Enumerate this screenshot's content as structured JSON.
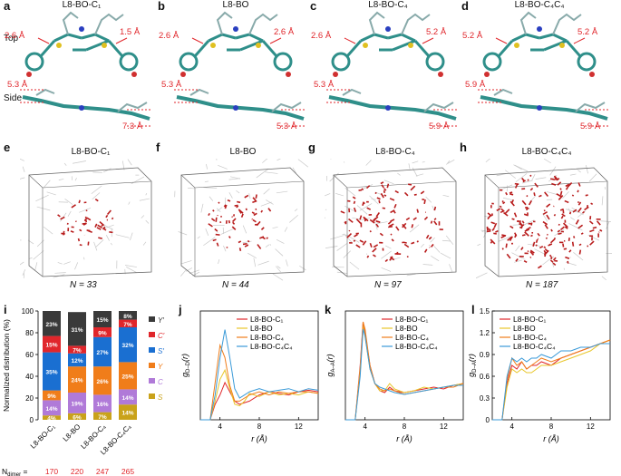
{
  "panels_top": [
    {
      "letter": "a",
      "title": "L8-BO-C₁",
      "ann_left": "2.6 Å",
      "ann_right": "1.5 Å",
      "side_left": "5.3 Å",
      "side_right": "7.3 Å"
    },
    {
      "letter": "b",
      "title": "L8-BO",
      "ann_left": "2.6 Å",
      "ann_right": "2.6 Å",
      "side_left": "5.3 Å",
      "side_right": "5.3 Å"
    },
    {
      "letter": "c",
      "title": "L8-BO-C₄",
      "ann_left": "2.6 Å",
      "ann_right": "5.2 Å",
      "side_left": "5.3 Å",
      "side_right": "5.9 Å"
    },
    {
      "letter": "d",
      "title": "L8-BO-C₄C₄",
      "ann_left": "5.2 Å",
      "ann_right": "5.2 Å",
      "side_left": "5.9 Å",
      "side_right": "5.9 Å"
    }
  ],
  "row_labels": {
    "top": "Top",
    "side": "Side"
  },
  "panels_mid": [
    {
      "letter": "e",
      "title": "L8-BO-C₁",
      "n": "N = 33"
    },
    {
      "letter": "f",
      "title": "L8-BO",
      "n": "N = 44"
    },
    {
      "letter": "g",
      "title": "L8-BO-C₄",
      "n": "N = 97"
    },
    {
      "letter": "h",
      "title": "L8-BO-C₄C₄",
      "n": "N = 187"
    }
  ],
  "colors": {
    "red": "#e0262b",
    "blue": "#1a6fd1",
    "orange": "#f07d1a",
    "purple": "#b07ad8",
    "gold": "#c9a21a",
    "dark": "#3a3a3a",
    "green": "#3aa04a"
  },
  "chart_data": [
    {
      "letter": "i",
      "type": "bar",
      "stacked": true,
      "ylabel": "Normalized distribution (%)",
      "ylim": [
        0,
        100
      ],
      "yticks": [
        "0",
        "20",
        "40",
        "60",
        "80",
        "100"
      ],
      "categories": [
        "L8-BO-C₁",
        "L8-BO",
        "L8-BO-C₄",
        "L8-BO-C₄C₄"
      ],
      "series": [
        {
          "name": "S",
          "color": "#c9a21a",
          "values": [
            4,
            6,
            7,
            14
          ],
          "labels": [
            "4%",
            "6%",
            "7%",
            "14%"
          ]
        },
        {
          "name": "C",
          "color": "#b07ad8",
          "values": [
            14,
            19,
            16,
            14
          ],
          "labels": [
            "14%",
            "19%",
            "16%",
            "14%"
          ]
        },
        {
          "name": "Y",
          "color": "#f07d1a",
          "values": [
            9,
            24,
            26,
            25
          ],
          "labels": [
            "9%",
            "24%",
            "26%",
            "25%"
          ]
        },
        {
          "name": "S′",
          "color": "#1a6fd1",
          "values": [
            35,
            12,
            27,
            32
          ],
          "labels": [
            "35%",
            "12%",
            "27%",
            "32%"
          ]
        },
        {
          "name": "C′",
          "color": "#e0262b",
          "values": [
            15,
            7,
            9,
            7
          ],
          "labels": [
            "15%",
            "7%",
            "9%",
            "7%"
          ]
        },
        {
          "name": "Y′",
          "color": "#3a3a3a",
          "values": [
            23,
            31,
            15,
            8
          ],
          "labels": [
            "23%",
            "31%",
            "15%",
            "8%"
          ]
        }
      ],
      "ndimer_label": "N",
      "ndimer_sub": "dimer",
      "ndimer_eq": " =",
      "ndimer": [
        "170",
        "220",
        "247",
        "265"
      ]
    },
    {
      "letter": "j",
      "type": "line",
      "ylabel": "g",
      "ylabel_sub": "D–D",
      "ylabel_tail": "(r)",
      "xlabel": "r (Å)",
      "xticks": [
        "4",
        "8",
        "12"
      ],
      "xlim": [
        2,
        14
      ],
      "ylim": [
        0,
        3.5
      ],
      "series": [
        {
          "name": "L8-BO-C₁",
          "color": "#e0262b",
          "x": [
            2,
            3,
            3.5,
            4,
            4.5,
            5,
            5.5,
            6,
            6.5,
            7,
            8,
            9,
            10,
            11,
            12,
            13,
            14
          ],
          "y": [
            0,
            0,
            0.5,
            0.8,
            1.2,
            0.9,
            0.6,
            0.5,
            0.55,
            0.6,
            0.8,
            0.9,
            0.85,
            0.8,
            0.9,
            0.95,
            0.9
          ]
        },
        {
          "name": "L8-BO",
          "color": "#e8c62a",
          "x": [
            2,
            3,
            3.5,
            4,
            4.5,
            5,
            5.5,
            6,
            6.5,
            7,
            8,
            9,
            10,
            11,
            12,
            13,
            14
          ],
          "y": [
            0,
            0,
            0.6,
            1.3,
            1.6,
            1.0,
            0.5,
            0.45,
            0.6,
            0.85,
            0.75,
            0.9,
            0.8,
            0.85,
            0.8,
            0.9,
            0.85
          ]
        },
        {
          "name": "L8-BO-C₄",
          "color": "#f07d1a",
          "x": [
            2,
            3,
            3.5,
            4,
            4.5,
            5,
            5.5,
            6,
            6.5,
            7,
            8,
            9,
            10,
            11,
            12,
            13,
            14
          ],
          "y": [
            0,
            0,
            1.2,
            2.4,
            2.0,
            1.1,
            0.6,
            0.6,
            0.7,
            0.8,
            0.9,
            0.8,
            0.9,
            0.85,
            0.9,
            0.9,
            0.85
          ]
        },
        {
          "name": "L8-BO-C₄C₄",
          "color": "#3a9ad8",
          "x": [
            2,
            3,
            3.5,
            4,
            4.5,
            5,
            5.5,
            6,
            6.5,
            7,
            8,
            9,
            10,
            11,
            12,
            13,
            14
          ],
          "y": [
            0,
            0,
            0.8,
            2.0,
            2.9,
            2.0,
            1.0,
            0.7,
            0.8,
            0.9,
            1.0,
            0.9,
            0.95,
            1.0,
            0.9,
            1.0,
            0.95
          ]
        }
      ]
    },
    {
      "letter": "k",
      "type": "line",
      "ylabel": "g",
      "ylabel_sub": "A–A",
      "ylabel_tail": "(r)",
      "xlabel": "r (Å)",
      "xticks": [
        "4",
        "8",
        "12"
      ],
      "xlim": [
        2,
        14
      ],
      "ylim": [
        0,
        3.0
      ],
      "series": [
        {
          "name": "L8-BO-C₁",
          "color": "#e0262b",
          "x": [
            2,
            3,
            3.5,
            3.8,
            4,
            4.5,
            5,
            5.5,
            6,
            6.5,
            7,
            8,
            9,
            10,
            11,
            12,
            13,
            14
          ],
          "y": [
            0,
            0,
            1.5,
            2.7,
            2.4,
            1.5,
            1.0,
            0.8,
            0.75,
            0.9,
            0.8,
            0.75,
            0.8,
            0.85,
            0.9,
            0.85,
            0.95,
            1.0
          ]
        },
        {
          "name": "L8-BO",
          "color": "#e8c62a",
          "x": [
            2,
            3,
            3.5,
            3.8,
            4,
            4.5,
            5,
            5.5,
            6,
            6.5,
            7,
            8,
            9,
            10,
            11,
            12,
            13,
            14
          ],
          "y": [
            0,
            0,
            1.4,
            2.6,
            2.3,
            1.4,
            1.0,
            0.8,
            0.8,
            1.0,
            0.85,
            0.75,
            0.8,
            0.9,
            0.85,
            0.9,
            0.95,
            1.0
          ]
        },
        {
          "name": "L8-BO-C₄",
          "color": "#f07d1a",
          "x": [
            2,
            3,
            3.5,
            3.8,
            4,
            4.5,
            5,
            5.5,
            6,
            6.5,
            7,
            8,
            9,
            10,
            11,
            12,
            13,
            14
          ],
          "y": [
            0,
            0,
            1.3,
            2.7,
            2.5,
            1.5,
            1.0,
            0.85,
            0.8,
            0.85,
            0.8,
            0.7,
            0.75,
            0.8,
            0.85,
            0.9,
            0.9,
            1.0
          ]
        },
        {
          "name": "L8-BO-C₄C₄",
          "color": "#3a9ad8",
          "x": [
            2,
            3,
            3.5,
            3.8,
            4,
            4.5,
            5,
            5.5,
            6,
            6.5,
            7,
            8,
            9,
            10,
            11,
            12,
            13,
            14
          ],
          "y": [
            0,
            0,
            1.2,
            2.5,
            2.3,
            1.4,
            1.0,
            0.9,
            0.85,
            0.8,
            0.75,
            0.7,
            0.75,
            0.8,
            0.85,
            0.9,
            0.95,
            0.95
          ]
        }
      ]
    },
    {
      "letter": "l",
      "type": "line",
      "ylabel": "g",
      "ylabel_sub": "D–A",
      "ylabel_tail": "(r)",
      "xlabel": "r (Å)",
      "xticks": [
        "4",
        "8",
        "12"
      ],
      "yticks": [
        "0",
        "0.3",
        "0.6",
        "0.9",
        "1.2",
        "1.5"
      ],
      "xlim": [
        2,
        14
      ],
      "ylim": [
        0,
        1.5
      ],
      "series": [
        {
          "name": "L8-BO-C₁",
          "color": "#e0262b",
          "x": [
            2,
            3,
            3.5,
            4,
            4.5,
            5,
            5.5,
            6,
            6.5,
            7,
            8,
            9,
            10,
            11,
            12,
            13,
            14
          ],
          "y": [
            0,
            0,
            0.5,
            0.75,
            0.7,
            0.8,
            0.7,
            0.75,
            0.75,
            0.8,
            0.75,
            0.85,
            0.9,
            0.95,
            1.0,
            1.05,
            1.1
          ]
        },
        {
          "name": "L8-BO",
          "color": "#e8c62a",
          "x": [
            2,
            3,
            3.5,
            4,
            4.5,
            5,
            5.5,
            6,
            6.5,
            7,
            8,
            9,
            10,
            11,
            12,
            13,
            14
          ],
          "y": [
            0,
            0,
            0.45,
            0.7,
            0.65,
            0.7,
            0.65,
            0.65,
            0.7,
            0.75,
            0.75,
            0.8,
            0.85,
            0.9,
            0.95,
            1.05,
            1.1
          ]
        },
        {
          "name": "L8-BO-C₄",
          "color": "#f07d1a",
          "x": [
            2,
            3,
            3.5,
            4,
            4.5,
            5,
            5.5,
            6,
            6.5,
            7,
            8,
            9,
            10,
            11,
            12,
            13,
            14
          ],
          "y": [
            0,
            0,
            0.55,
            0.85,
            0.75,
            0.8,
            0.7,
            0.75,
            0.8,
            0.85,
            0.8,
            0.85,
            0.9,
            0.95,
            1.0,
            1.05,
            1.1
          ]
        },
        {
          "name": "L8-BO-C₄C₄",
          "color": "#3a9ad8",
          "x": [
            2,
            3,
            3.5,
            4,
            4.5,
            5,
            5.5,
            6,
            6.5,
            7,
            8,
            9,
            10,
            11,
            12,
            13,
            14
          ],
          "y": [
            0,
            0,
            0.6,
            0.85,
            0.8,
            0.85,
            0.8,
            0.85,
            0.85,
            0.9,
            0.85,
            0.95,
            0.95,
            1.0,
            1.0,
            1.05,
            1.05
          ]
        }
      ]
    }
  ]
}
